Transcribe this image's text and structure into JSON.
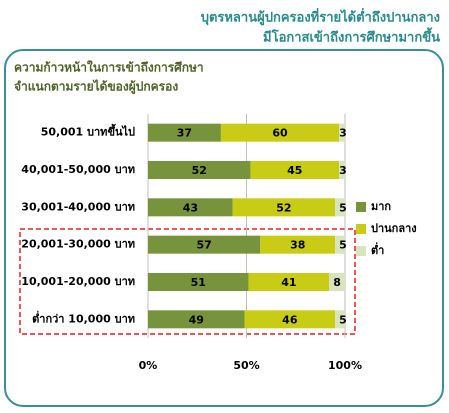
{
  "chart_data": {
    "type": "stacked_barh",
    "title": [
      "บุตรหลานผู้ปกครองที่รายได้ต่ำถึงปานกลาง",
      "มีโอกาสเข้าถึงการศึกษามากขึ้น"
    ],
    "subtitle": [
      "ความก้าวหน้าในการเข้าถึงการศึกษา",
      "จำแนกตามรายได้ของผู้ปกครอง"
    ],
    "categories": [
      "50,001 บาทขึ้นไป",
      "40,001-50,000 บาท",
      "30,001-40,000 บาท",
      "20,001-30,000 บาท",
      "10,001-20,000 บาท",
      "ต่ำกว่า 10,000 บาท"
    ],
    "series": [
      {
        "name": "มาก",
        "color": "#77933c",
        "values": [
          37,
          52,
          43,
          57,
          51,
          49
        ]
      },
      {
        "name": "ปานกลาง",
        "color": "#c8cc14",
        "values": [
          60,
          45,
          52,
          38,
          41,
          46
        ]
      },
      {
        "name": "ต่ำ",
        "color": "#d7e4bd",
        "values": [
          3,
          3,
          5,
          5,
          8,
          5
        ]
      }
    ],
    "xlim": [
      0,
      100
    ],
    "xticks": [
      {
        "value": 0,
        "label": "0%"
      },
      {
        "value": 50,
        "label": "50%"
      },
      {
        "value": 100,
        "label": "100%"
      }
    ],
    "grid": true,
    "legend": "right"
  }
}
